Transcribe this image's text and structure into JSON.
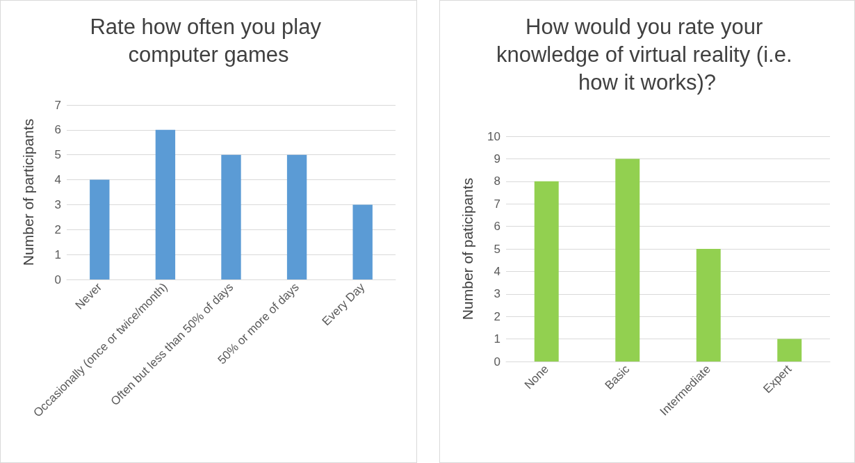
{
  "chart_data": [
    {
      "type": "bar",
      "title": "Rate how often you play computer games",
      "ylabel": "Number of participants",
      "categories": [
        "Never",
        "Occasionally (once or twice/month)",
        "Often but less than 50% of days",
        "50% or more of days",
        "Every Day"
      ],
      "values": [
        4,
        6,
        5,
        5,
        3
      ],
      "color": "#5b9bd5",
      "ylim": [
        0,
        7
      ],
      "yticks": [
        0,
        1,
        2,
        3,
        4,
        5,
        6,
        7
      ],
      "grid": "y"
    },
    {
      "type": "bar",
      "title": "How would you rate your knowledge of virtual reality (i.e. how it works)?",
      "ylabel": "Number of paticipants",
      "categories": [
        "None",
        "Basic",
        "Intermediate",
        "Expert"
      ],
      "values": [
        8,
        9,
        5,
        1
      ],
      "color": "#92d050",
      "ylim": [
        0,
        10
      ],
      "yticks": [
        0,
        1,
        2,
        3,
        4,
        5,
        6,
        7,
        8,
        9,
        10
      ],
      "grid": "y"
    }
  ]
}
